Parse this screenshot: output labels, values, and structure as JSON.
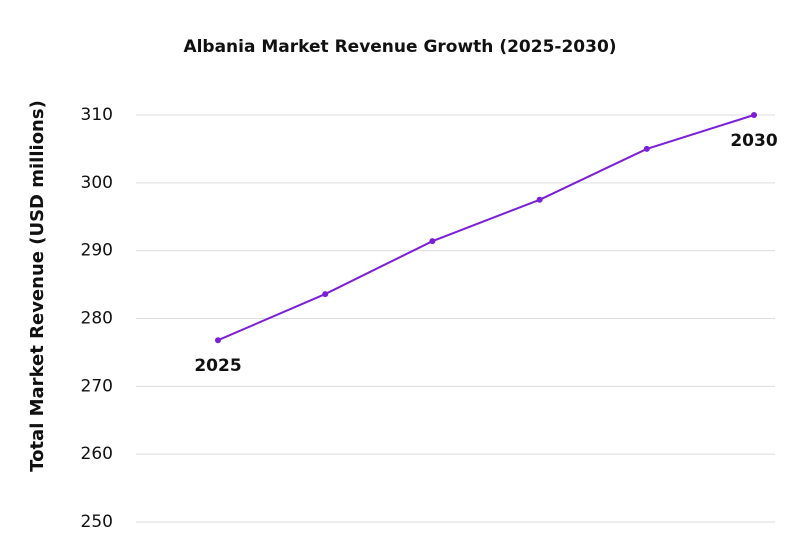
{
  "chart_data": {
    "type": "line",
    "title": "Albania Market Revenue Growth (2025-2030)",
    "y_label": "Total Market Revenue (USD millions)",
    "categories": [
      "2025",
      null,
      null,
      null,
      null,
      "2030"
    ],
    "series": [
      {
        "name": "Total Market Revenue",
        "color": "#7b1fd8",
        "values": [
          276.8,
          283.6,
          291.4,
          297.5,
          305,
          310
        ]
      }
    ],
    "ylim": [
      250,
      310
    ],
    "yticks": [
      250,
      260,
      270,
      280,
      290,
      300,
      310
    ],
    "grid": true
  }
}
